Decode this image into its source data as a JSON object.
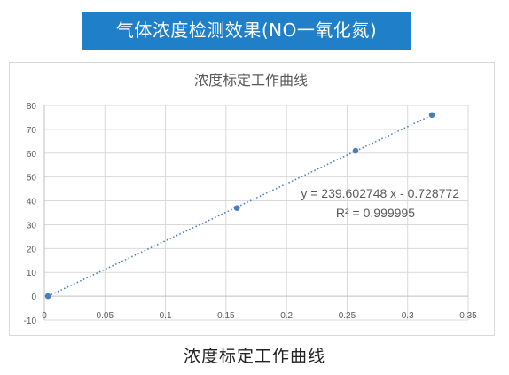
{
  "banner": {
    "title": "气体浓度检测效果(NO一氧化氮)"
  },
  "caption": "浓度标定工作曲线",
  "colors": {
    "banner_bg": "#1f7fc9",
    "series": "#4a7ebb",
    "grid": "#d9d9d9",
    "axis_text": "#595959"
  },
  "chart_data": {
    "type": "scatter",
    "title": "浓度标定工作曲线",
    "xlabel": "",
    "ylabel": "",
    "xlim": [
      0,
      0.35
    ],
    "ylim": [
      -10,
      80
    ],
    "x_ticks": [
      0,
      0.05,
      0.1,
      0.15,
      0.2,
      0.25,
      0.3,
      0.35
    ],
    "x_tick_labels": [
      "0",
      "0.05",
      "0.1",
      "0.15",
      "0.2",
      "0.25",
      "0.3",
      "0.35"
    ],
    "y_ticks": [
      -10,
      0,
      10,
      20,
      30,
      40,
      50,
      60,
      70,
      80
    ],
    "y_tick_labels": [
      "-10",
      "0",
      "10",
      "20",
      "30",
      "40",
      "50",
      "60",
      "70",
      "80"
    ],
    "grid": true,
    "series": [
      {
        "points": [
          {
            "x": 0.003,
            "y": 0
          },
          {
            "x": 0.159,
            "y": 37
          },
          {
            "x": 0.257,
            "y": 61
          },
          {
            "x": 0.32,
            "y": 76
          }
        ]
      }
    ],
    "trendline": {
      "type": "linear",
      "slope": 239.602748,
      "intercept": -0.728772,
      "x_range": [
        0.003,
        0.32
      ]
    },
    "annotations": [
      "y = 239.602748 x - 0.728772",
      "R² = 0.999995"
    ]
  }
}
